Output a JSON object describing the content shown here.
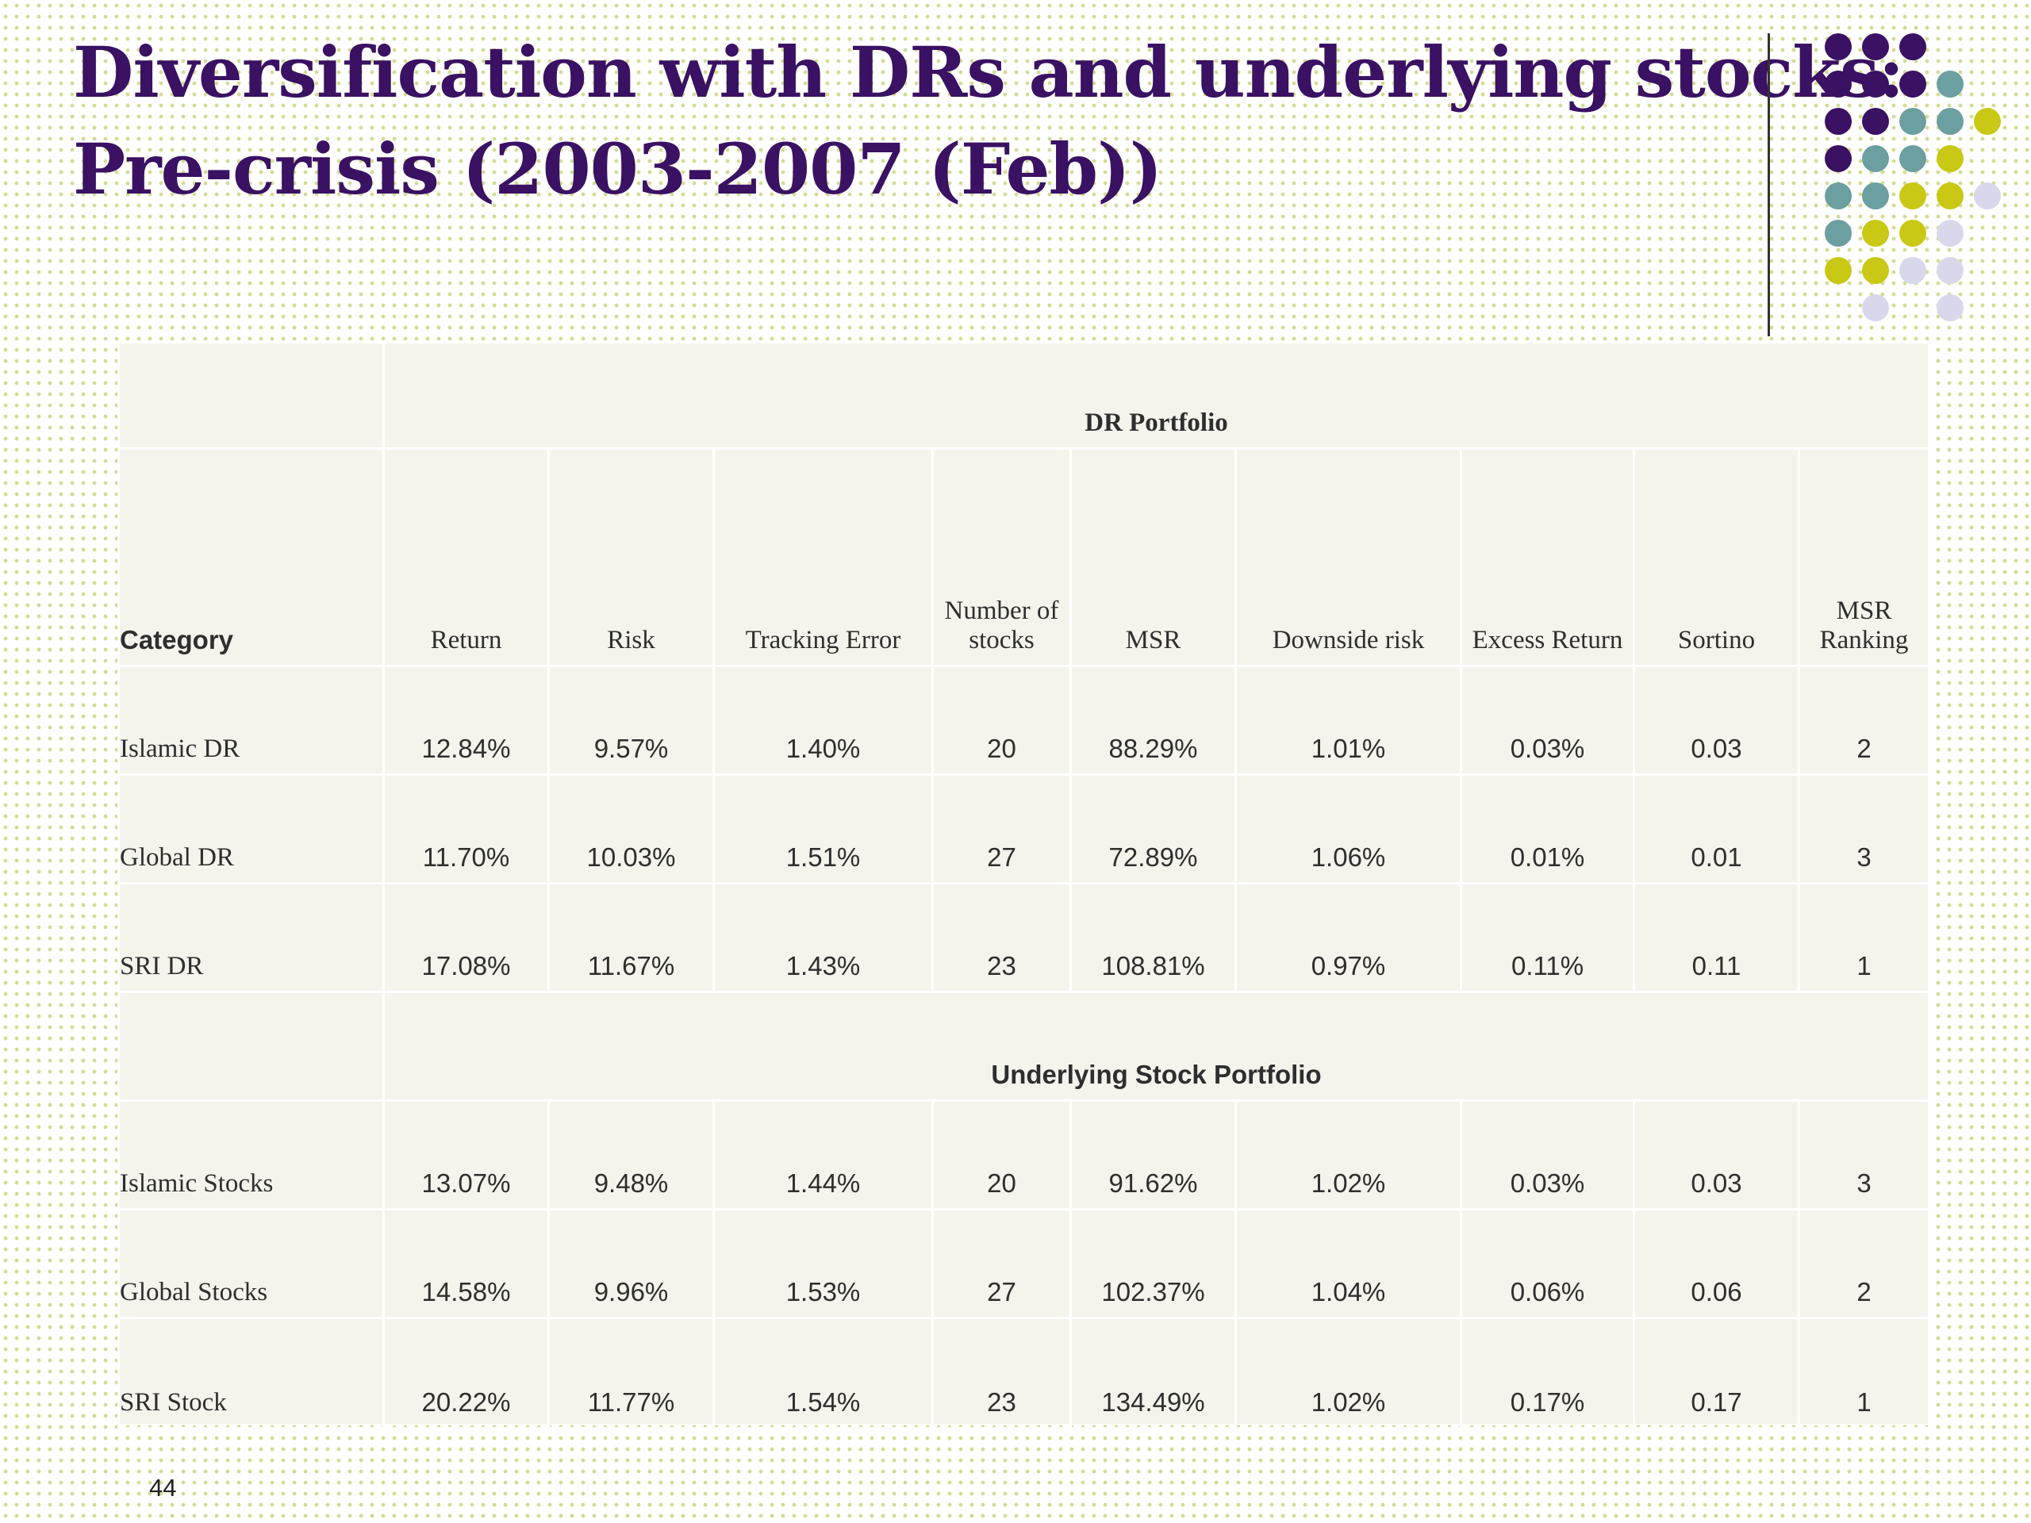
{
  "slide": {
    "title_line1": "Diversification with DRs and underlying stocks:",
    "title_line2": "Pre-crisis (2003-2007 (Feb))",
    "page_number": "44",
    "title_color": "#3a1163",
    "accent_red": "#ee0000"
  },
  "decoration": {
    "dot_colors": {
      "P": "#3a1163",
      "T": "#6b9fa0",
      "Y": "#c9c815",
      "L": "#d8d8ec"
    },
    "rows": [
      "PPP..",
      "PPPT.",
      "PPTTY",
      "PTTY.",
      "TTYYL",
      "TYYL.",
      "YYLL.",
      ".L.L."
    ]
  },
  "table": {
    "section_dr": "DR Portfolio",
    "section_stock": "Underlying Stock Portfolio",
    "headers": [
      "Category",
      "Return",
      "Risk",
      "Tracking Error",
      "Number of stocks",
      "MSR",
      "Downside risk",
      "Excess Return",
      "Sortino",
      "MSR Ranking"
    ],
    "dr_rows": [
      {
        "category": "Islamic DR",
        "values": [
          "12.84%",
          "9.57%",
          "1.40%",
          "20",
          "88.29%",
          "1.01%",
          "0.03%",
          "0.03",
          "2"
        ]
      },
      {
        "category": "Global DR",
        "values": [
          "11.70%",
          "10.03%",
          "1.51%",
          "27",
          "72.89%",
          "1.06%",
          "0.01%",
          "0.01",
          "3"
        ]
      },
      {
        "category": "SRI DR",
        "values": [
          "17.08%",
          "11.67%",
          "1.43%",
          "23",
          "108.81%",
          "0.97%",
          "0.11%",
          "0.11",
          "1"
        ]
      }
    ],
    "stock_rows": [
      {
        "category": "Islamic Stocks",
        "values": [
          "13.07%",
          "9.48%",
          "1.44%",
          "20",
          "91.62%",
          "1.02%",
          "0.03%",
          "0.03",
          "3"
        ]
      },
      {
        "category": "Global Stocks",
        "values": [
          "14.58%",
          "9.96%",
          "1.53%",
          "27",
          "102.37%",
          "1.04%",
          "0.06%",
          "0.06",
          "2"
        ]
      },
      {
        "category": "SRI Stock",
        "values": [
          "20.22%",
          "11.77%",
          "1.54%",
          "23",
          "134.49%",
          "1.02%",
          "0.17%",
          "0.17",
          "1"
        ]
      }
    ]
  }
}
